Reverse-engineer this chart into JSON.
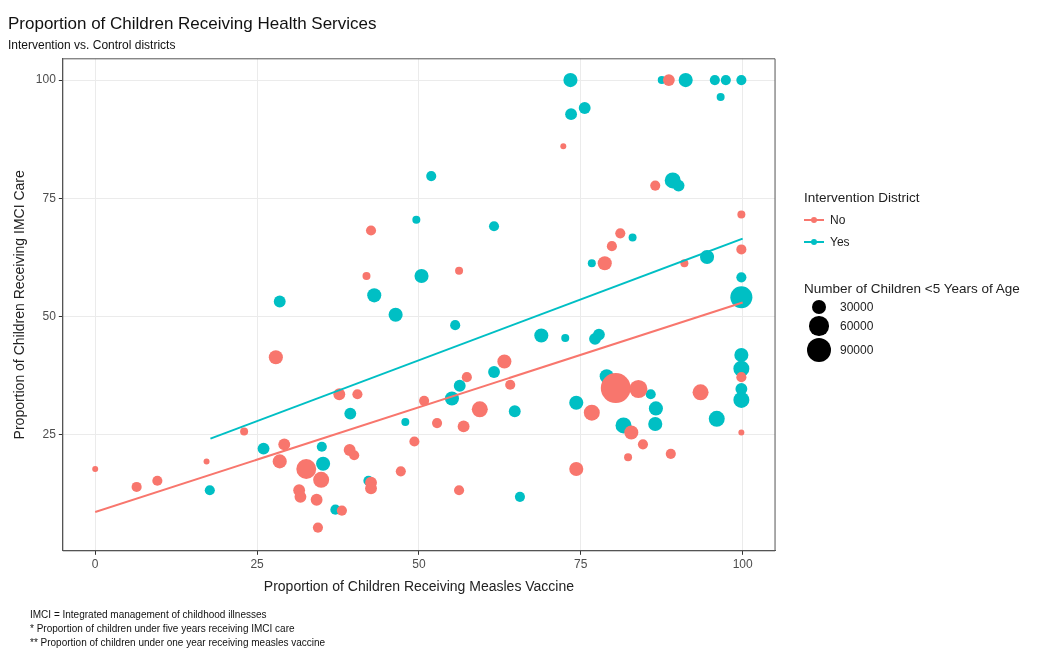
{
  "chart_data": {
    "type": "bubble",
    "title": "Proportion of Children Receiving Health Services",
    "subtitle": "Intervention vs. Control districts",
    "xlabel": "Proportion of Children Receiving Measles Vaccine",
    "ylabel": "Proportion of Children Receiving IMCI Care",
    "legend_title": "Intervention District",
    "legend": "right",
    "grid": true,
    "xlim": [
      -5,
      105
    ],
    "xticks": [
      0,
      25,
      50,
      75,
      100
    ],
    "ylim": [
      0.5,
      104.5
    ],
    "yticks": [
      25,
      50,
      75,
      100
    ],
    "size_legend": [
      30000,
      60000,
      90000
    ],
    "annotations": [
      "Number of Children <5 Years of Age",
      "IMCI = Integrated management of childhood illnesses",
      "* Proportion of children under five years receiving IMCI care",
      "** Proportion of children under one year receiving measles vaccine"
    ],
    "series": [
      {
        "name": "No",
        "color": "#f8766d",
        "x": [
          88.6,
          72.3,
          86.5,
          99.8,
          81.1,
          79.8,
          99.8,
          78.7,
          91.0,
          56.2,
          42.6,
          41.9,
          27.9,
          37.7,
          40.5,
          50.8,
          23.0,
          29.2,
          28.5,
          32.6,
          34.9,
          31.5,
          31.7,
          34.2,
          34.4,
          38.1,
          39.3,
          40.0,
          42.6,
          42.6,
          47.2,
          49.3,
          0.0,
          6.4,
          9.6,
          17.2,
          52.8,
          56.9,
          59.4,
          57.4,
          63.2,
          64.1,
          76.7,
          80.4,
          83.9,
          82.8,
          84.6,
          82.3,
          88.9,
          93.5,
          99.8,
          99.8,
          74.3,
          56.2
        ],
        "values": [
          100,
          86.0,
          77.7,
          71.6,
          67.6,
          64.9,
          64.2,
          61.3,
          61.3,
          59.7,
          68.2,
          58.6,
          41.4,
          33.6,
          33.6,
          32.2,
          25.7,
          23.0,
          19.4,
          17.8,
          15.5,
          13.3,
          11.9,
          11.3,
          5.4,
          9.0,
          21.8,
          20.7,
          14.9,
          13.7,
          17.3,
          23.6,
          17.8,
          14.0,
          15.3,
          19.4,
          27.5,
          26.8,
          30.4,
          37.2,
          40.5,
          35.6,
          29.7,
          34.9,
          34.7,
          25.5,
          23.0,
          20.3,
          21.0,
          34.0,
          25.5,
          37.2,
          17.8,
          13.3
        ],
        "sizes": [
          22000,
          5600,
          16000,
          10000,
          16000,
          16000,
          16000,
          31000,
          10000,
          10000,
          16000,
          10000,
          31000,
          22000,
          16000,
          16000,
          10000,
          22000,
          31000,
          62000,
          40000,
          22000,
          22000,
          22000,
          16000,
          16000,
          22000,
          16000,
          22000,
          22000,
          16000,
          16000,
          5600,
          16000,
          16000,
          5600,
          16000,
          22000,
          40000,
          16000,
          31000,
          16000,
          40000,
          140000,
          51000,
          31000,
          16000,
          10000,
          16000,
          40000,
          5600,
          16000,
          31000,
          16000
        ]
      },
      {
        "name": "Yes",
        "color": "#00bfc4",
        "x": [
          73.4,
          87.5,
          91.2,
          95.7,
          97.4,
          99.8,
          73.5,
          75.6,
          96.6,
          51.9,
          89.2,
          90.1,
          49.6,
          61.6,
          83.0,
          99.8,
          94.5,
          76.7,
          50.4,
          43.1,
          28.5,
          46.4,
          99.8,
          55.6,
          68.9,
          72.6,
          77.2,
          77.8,
          99.8,
          99.8,
          99.8,
          99.8,
          61.6,
          79.0,
          85.8,
          86.6,
          86.5,
          81.6,
          96.0,
          64.8,
          74.3,
          55.1,
          56.3,
          65.6,
          26.0,
          35.0,
          35.2,
          17.7,
          37.1,
          42.2,
          39.4,
          47.9
        ],
        "values": [
          100,
          100,
          100,
          100,
          100,
          100,
          92.8,
          94.1,
          96.4,
          79.7,
          78.8,
          77.7,
          70.5,
          69.1,
          66.7,
          58.3,
          62.6,
          61.3,
          58.6,
          54.5,
          53.2,
          50.4,
          54.1,
          48.2,
          46.0,
          45.5,
          45.3,
          46.2,
          41.9,
          39.0,
          34.7,
          32.4,
          38.3,
          37.4,
          33.6,
          30.6,
          27.3,
          27.0,
          28.4,
          30.0,
          31.8,
          32.7,
          35.4,
          11.9,
          22.1,
          22.5,
          18.9,
          13.3,
          9.2,
          15.3,
          29.5,
          27.7
        ],
        "sizes": [
          31000,
          10000,
          31000,
          16000,
          16000,
          16000,
          22000,
          22000,
          10000,
          16000,
          40000,
          22000,
          10000,
          16000,
          10000,
          16000,
          31000,
          10000,
          31000,
          31000,
          22000,
          31000,
          76000,
          16000,
          31000,
          10000,
          22000,
          22000,
          31000,
          40000,
          22000,
          40000,
          22000,
          31000,
          16000,
          31000,
          31000,
          40000,
          40000,
          22000,
          31000,
          31000,
          22000,
          16000,
          22000,
          16000,
          31000,
          16000,
          16000,
          16000,
          22000,
          10000
        ]
      },
      {
        "type": "line",
        "color": "#f8766d",
        "x": [
          0,
          100
        ],
        "values": [
          8.7,
          53
        ]
      },
      {
        "type": "line",
        "color": "#00bfc4",
        "x": [
          17.8,
          100
        ],
        "values": [
          24.2,
          66.5
        ]
      }
    ]
  }
}
